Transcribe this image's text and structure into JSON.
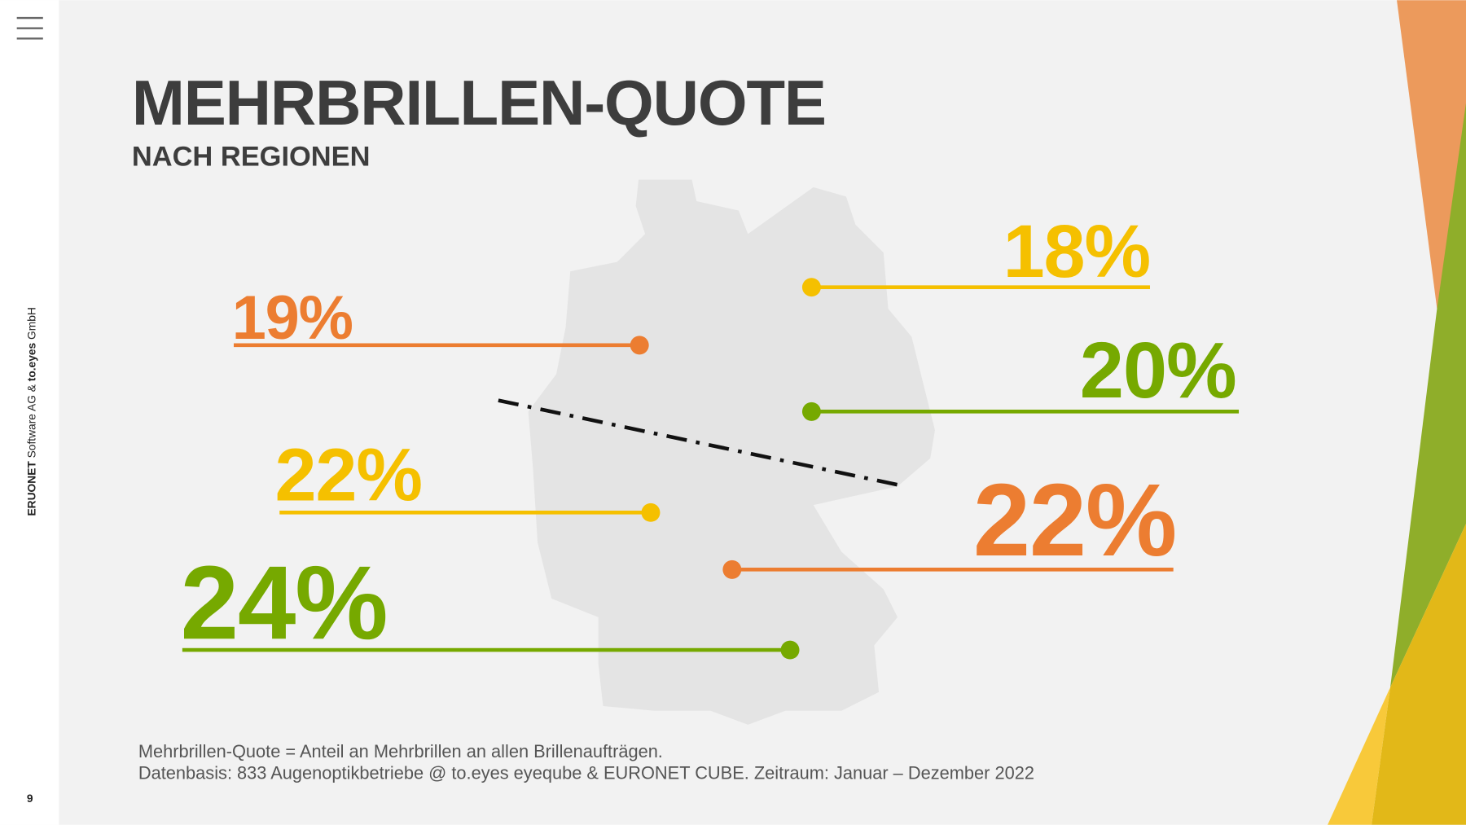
{
  "sidebar": {
    "brand_1": "ERUONET",
    "text_1": " Software AG & ",
    "brand_2": "to.eyes",
    "text_2": " GmbH",
    "page_number": "9"
  },
  "header": {
    "title": "MEHRBRILLEN-QUOTE",
    "subtitle": "NACH REGIONEN"
  },
  "callouts": [
    {
      "label": "18%"
    },
    {
      "label": "20%"
    },
    {
      "label": "22%"
    },
    {
      "label": "19%"
    },
    {
      "label": "22%"
    },
    {
      "label": "24%"
    }
  ],
  "footnote": {
    "line_1": "Mehrbrillen-Quote = Anteil an Mehrbrillen an allen Brillenaufträgen.",
    "line_2": "Datenbasis: 833 Augenoptikbetriebe @ to.eyes eyeqube & EURONET CUBE. Zeitraum: Januar – Dezember 2022"
  }
}
